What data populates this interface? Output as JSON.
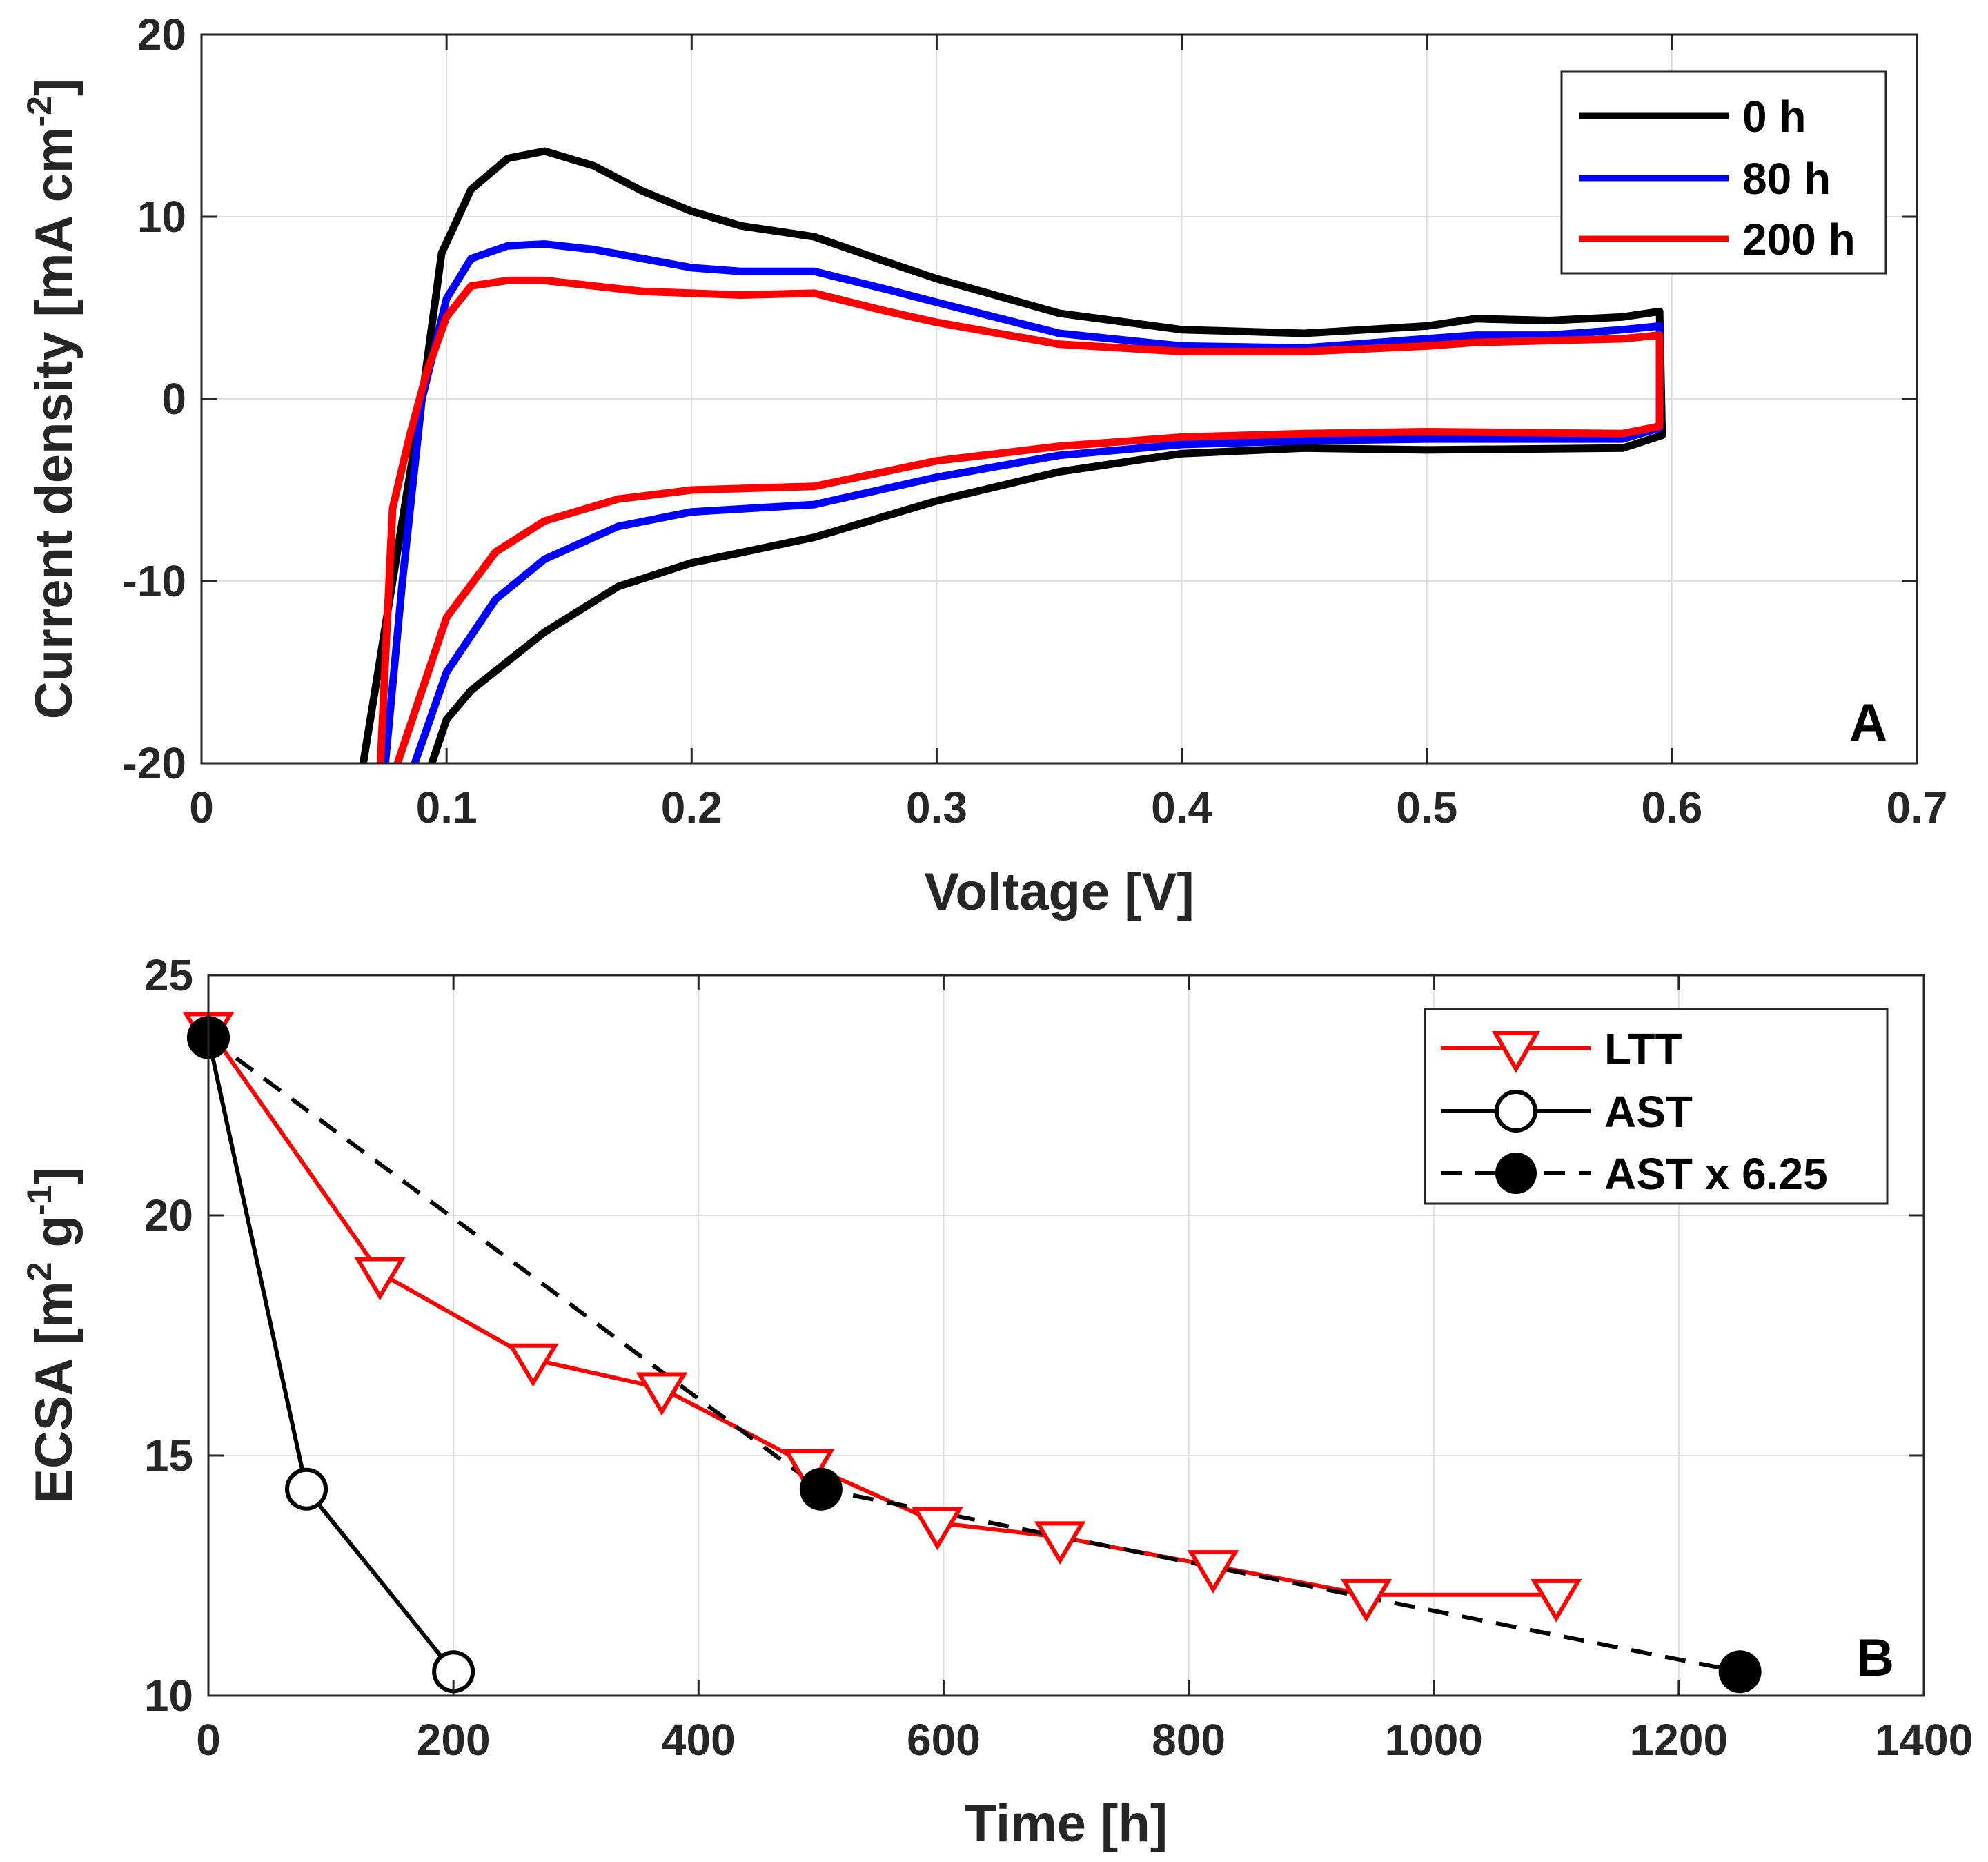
{
  "chart_data": [
    {
      "type": "line",
      "panel_label": "A",
      "xlabel": "Voltage [V]",
      "ylabel": "Current density [mA cm",
      "ylabel_sup": "-2",
      "ylabel_end": "]",
      "xlim": [
        0,
        0.7
      ],
      "ylim": [
        -20,
        20
      ],
      "xticks": [
        "0",
        "0.1",
        "0.2",
        "0.3",
        "0.4",
        "0.5",
        "0.6",
        "0.7"
      ],
      "yticks": [
        "-20",
        "-10",
        "0",
        "10",
        "20"
      ],
      "grid": true,
      "legend": {
        "position": "top-right",
        "entries": [
          "0 h",
          "80 h",
          "200 h"
        ]
      },
      "series": [
        {
          "name": "0 h",
          "color": "#000000",
          "anodic": [
            [
              0.066,
              -20
            ],
            [
              0.078,
              -10
            ],
            [
              0.09,
              0
            ],
            [
              0.098,
              8
            ],
            [
              0.11,
              11.5
            ],
            [
              0.125,
              13.2
            ],
            [
              0.14,
              13.6
            ],
            [
              0.16,
              12.8
            ],
            [
              0.18,
              11.4
            ],
            [
              0.2,
              10.3
            ],
            [
              0.22,
              9.5
            ],
            [
              0.25,
              8.9
            ],
            [
              0.28,
              7.5
            ],
            [
              0.3,
              6.6
            ],
            [
              0.35,
              4.7
            ],
            [
              0.4,
              3.8
            ],
            [
              0.45,
              3.6
            ],
            [
              0.5,
              4.0
            ],
            [
              0.52,
              4.4
            ],
            [
              0.55,
              4.3
            ],
            [
              0.58,
              4.5
            ],
            [
              0.595,
              4.8
            ]
          ],
          "cathodic": [
            [
              0.595,
              4.8
            ],
            [
              0.596,
              -2.0
            ],
            [
              0.58,
              -2.7
            ],
            [
              0.5,
              -2.8
            ],
            [
              0.45,
              -2.7
            ],
            [
              0.4,
              -3.0
            ],
            [
              0.35,
              -4.0
            ],
            [
              0.3,
              -5.6
            ],
            [
              0.25,
              -7.6
            ],
            [
              0.2,
              -9.0
            ],
            [
              0.17,
              -10.3
            ],
            [
              0.14,
              -12.8
            ],
            [
              0.11,
              -16.0
            ],
            [
              0.1,
              -17.6
            ],
            [
              0.094,
              -20
            ]
          ]
        },
        {
          "name": "80 h",
          "color": "#0000ff",
          "anodic": [
            [
              0.075,
              -20
            ],
            [
              0.082,
              -10
            ],
            [
              0.09,
              0
            ],
            [
              0.1,
              5.5
            ],
            [
              0.11,
              7.7
            ],
            [
              0.125,
              8.4
            ],
            [
              0.14,
              8.5
            ],
            [
              0.16,
              8.2
            ],
            [
              0.18,
              7.7
            ],
            [
              0.2,
              7.2
            ],
            [
              0.22,
              7.0
            ],
            [
              0.25,
              7.0
            ],
            [
              0.28,
              6.0
            ],
            [
              0.3,
              5.3
            ],
            [
              0.35,
              3.6
            ],
            [
              0.4,
              2.9
            ],
            [
              0.45,
              2.8
            ],
            [
              0.5,
              3.3
            ],
            [
              0.52,
              3.5
            ],
            [
              0.55,
              3.5
            ],
            [
              0.58,
              3.8
            ],
            [
              0.595,
              4.0
            ]
          ],
          "cathodic": [
            [
              0.595,
              4.0
            ],
            [
              0.595,
              -1.6
            ],
            [
              0.58,
              -2.2
            ],
            [
              0.5,
              -2.2
            ],
            [
              0.45,
              -2.3
            ],
            [
              0.4,
              -2.5
            ],
            [
              0.35,
              -3.1
            ],
            [
              0.3,
              -4.3
            ],
            [
              0.25,
              -5.8
            ],
            [
              0.2,
              -6.2
            ],
            [
              0.17,
              -7.0
            ],
            [
              0.14,
              -8.8
            ],
            [
              0.12,
              -11.0
            ],
            [
              0.1,
              -15.0
            ],
            [
              0.087,
              -20
            ]
          ]
        },
        {
          "name": "200 h",
          "color": "#ff0000",
          "anodic": [
            [
              0.073,
              -20
            ],
            [
              0.078,
              -6
            ],
            [
              0.085,
              -2
            ],
            [
              0.092,
              1.5
            ],
            [
              0.1,
              4.5
            ],
            [
              0.11,
              6.2
            ],
            [
              0.125,
              6.5
            ],
            [
              0.14,
              6.5
            ],
            [
              0.16,
              6.2
            ],
            [
              0.18,
              5.9
            ],
            [
              0.2,
              5.8
            ],
            [
              0.22,
              5.7
            ],
            [
              0.25,
              5.8
            ],
            [
              0.28,
              4.8
            ],
            [
              0.3,
              4.2
            ],
            [
              0.35,
              3.0
            ],
            [
              0.4,
              2.6
            ],
            [
              0.45,
              2.6
            ],
            [
              0.5,
              2.9
            ],
            [
              0.52,
              3.1
            ],
            [
              0.55,
              3.2
            ],
            [
              0.58,
              3.3
            ],
            [
              0.595,
              3.5
            ]
          ],
          "cathodic": [
            [
              0.595,
              3.5
            ],
            [
              0.595,
              -1.5
            ],
            [
              0.58,
              -1.9
            ],
            [
              0.5,
              -1.8
            ],
            [
              0.45,
              -1.9
            ],
            [
              0.4,
              -2.1
            ],
            [
              0.35,
              -2.6
            ],
            [
              0.3,
              -3.4
            ],
            [
              0.25,
              -4.8
            ],
            [
              0.2,
              -5.0
            ],
            [
              0.17,
              -5.5
            ],
            [
              0.14,
              -6.7
            ],
            [
              0.12,
              -8.4
            ],
            [
              0.1,
              -12.0
            ],
            [
              0.08,
              -20
            ]
          ]
        }
      ]
    },
    {
      "type": "line",
      "panel_label": "B",
      "xlabel": "Time [h]",
      "ylabel": "ECSA [m",
      "ylabel_sup1": "2",
      "ylabel_mid": " g",
      "ylabel_sup2": "-1",
      "ylabel_end": "]",
      "xlim": [
        0,
        1400
      ],
      "ylim": [
        10,
        25
      ],
      "xticks": [
        "0",
        "200",
        "400",
        "600",
        "800",
        "1000",
        "1200",
        "1400"
      ],
      "yticks": [
        "10",
        "15",
        "20",
        "25"
      ],
      "grid": true,
      "legend": {
        "position": "top-right",
        "entries": [
          "LTT",
          "AST",
          "AST x 6.25"
        ]
      },
      "series": [
        {
          "name": "LTT",
          "color": "#ff0000",
          "marker": "triangle-down-open",
          "line": "solid",
          "x": [
            0,
            140,
            265,
            370,
            490,
            595,
            695,
            820,
            945,
            1100
          ],
          "y": [
            23.9,
            18.8,
            17.0,
            16.4,
            14.8,
            13.6,
            13.3,
            12.7,
            12.1,
            12.1
          ]
        },
        {
          "name": "AST",
          "color": "#000000",
          "marker": "circle-open",
          "line": "solid",
          "x": [
            0,
            80,
            200
          ],
          "y": [
            23.7,
            14.3,
            10.5
          ]
        },
        {
          "name": "AST x 6.25",
          "color": "#000000",
          "marker": "circle-filled",
          "line": "dashed",
          "x": [
            0,
            500,
            1250
          ],
          "y": [
            23.7,
            14.3,
            10.5
          ]
        }
      ]
    }
  ]
}
